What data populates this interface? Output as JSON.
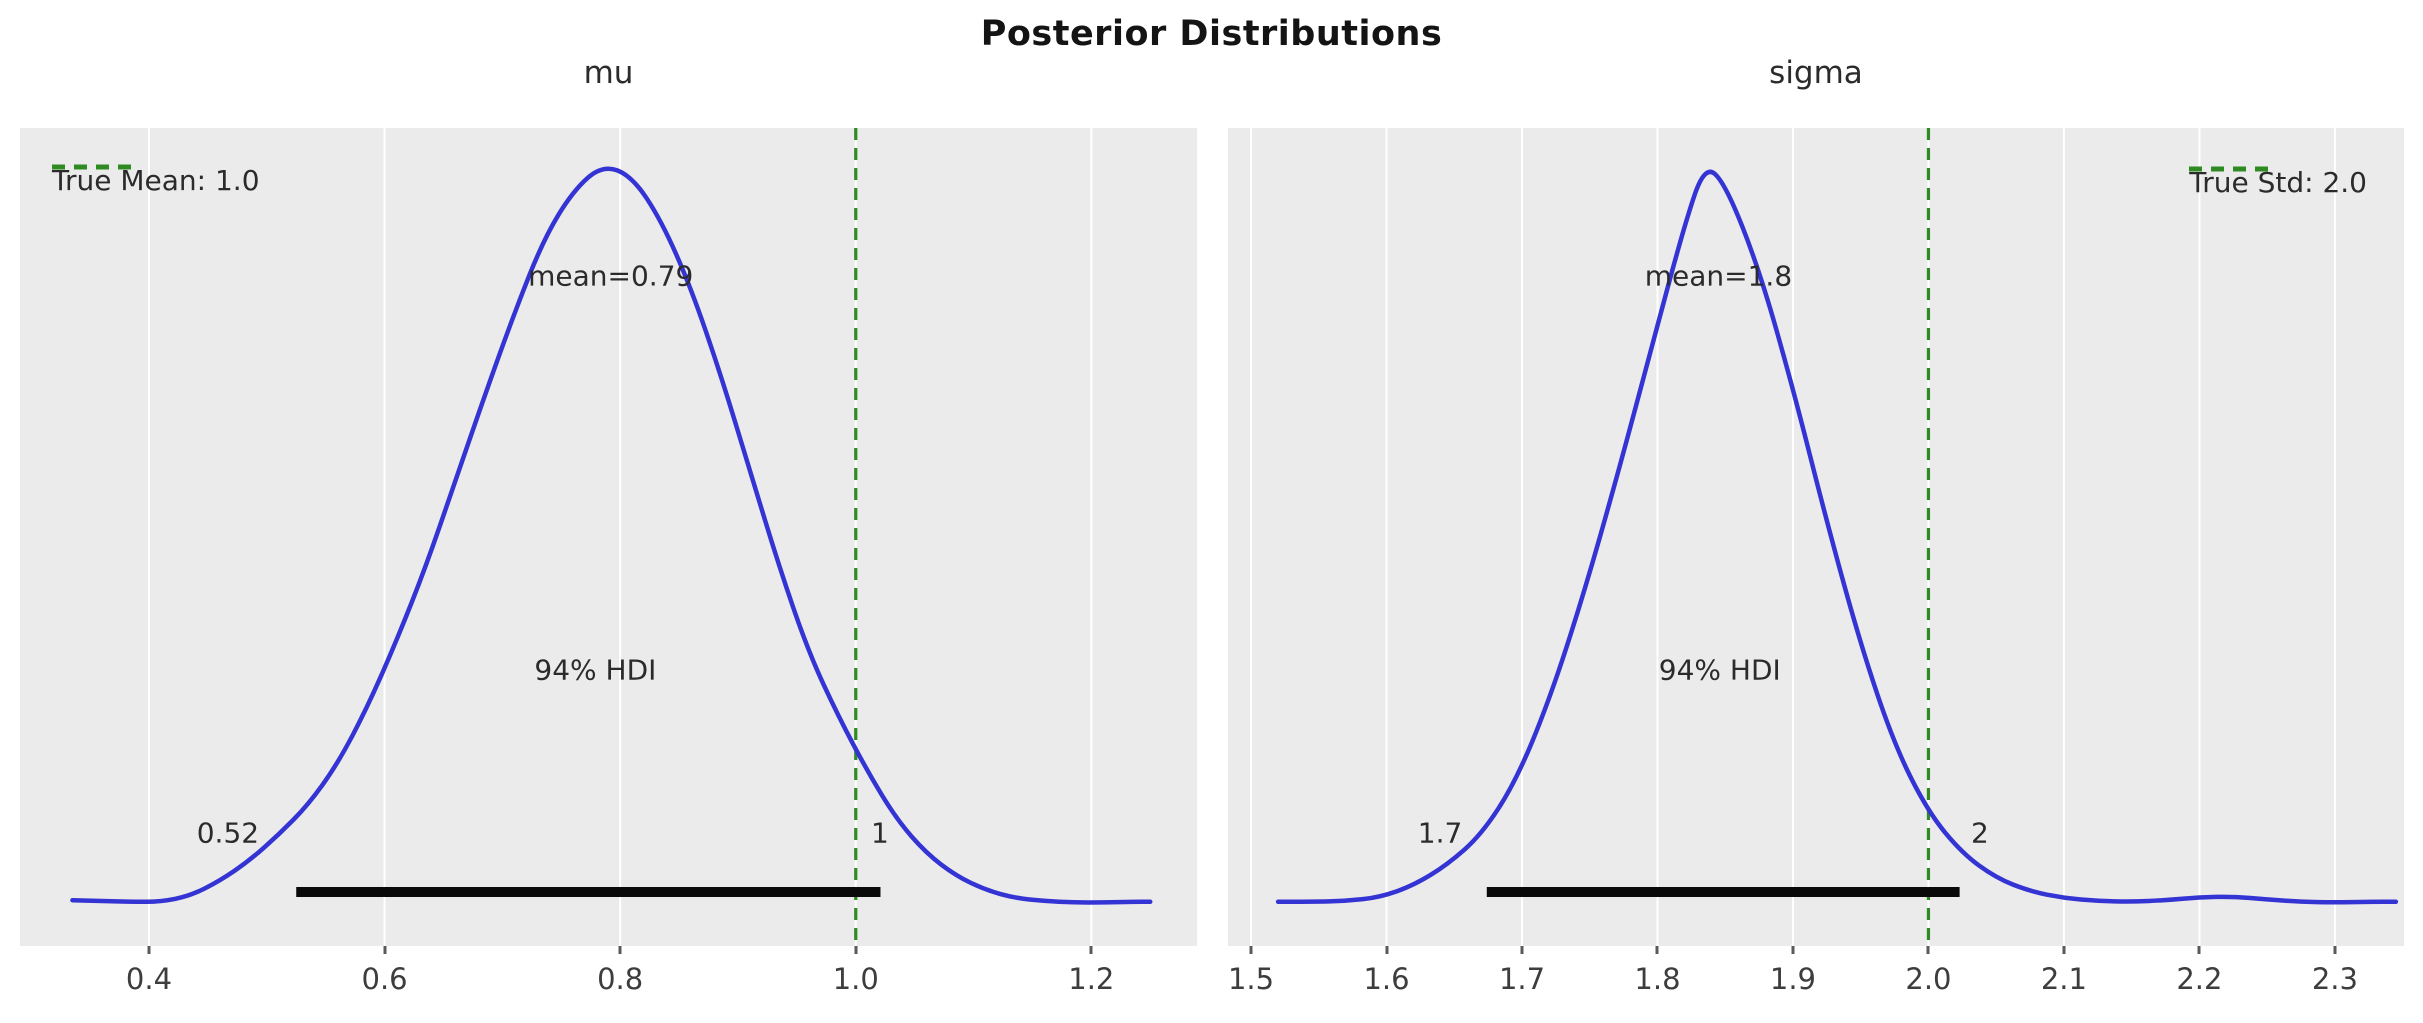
{
  "title": "Posterior Distributions",
  "colors": {
    "figure_background": "#ffffff",
    "axes_background": "#ebebeb",
    "grid": "#ffffff",
    "kde_curve": "#3434d4",
    "true_value_line": "#2e8b22",
    "hdi_bar": "#0a0a0a",
    "text": "#2b2b2b",
    "tick_text": "#3d3d3d"
  },
  "chart_data": {
    "type": "kde",
    "title": "Posterior Distributions",
    "grid": true,
    "layout": {
      "baseline_frac": 0.955,
      "peak_frac": 0.045,
      "hdi_bar_frac": 0.934,
      "mean_text_frac": 0.181,
      "hdi_text_frac": 0.663,
      "hdi_endpoint_text_frac": 0.862
    },
    "panels": [
      {
        "id": "mu",
        "title": "mu",
        "legend": {
          "label": "True Mean: 1.0",
          "position": "upper left"
        },
        "true_value": 1.0,
        "mean": 0.79,
        "mean_label": "mean=0.79",
        "hdi_label": "94% HDI",
        "hdi_low": 0.52,
        "hdi_high": 1.0,
        "hdi_low_label": "0.52",
        "hdi_high_label": "1",
        "hdi_bar": {
          "x0": 0.525,
          "x1": 1.021
        },
        "xlim": [
          0.2905,
          1.2897
        ],
        "x_ticks": [
          0.4,
          0.6,
          0.8,
          1.0,
          1.2
        ],
        "x_tick_labels": [
          "0.4",
          "0.6",
          "0.8",
          "1.0",
          "1.2"
        ],
        "label_x_hints": {
          "mean": 0.792,
          "hdi": 0.779,
          "hdi_low": 0.467,
          "hdi_high": 1.0205
        },
        "curve": {
          "x": [
            0.335,
            0.36,
            0.385,
            0.41,
            0.435,
            0.46,
            0.485,
            0.51,
            0.535,
            0.56,
            0.585,
            0.61,
            0.635,
            0.66,
            0.685,
            0.71,
            0.735,
            0.76,
            0.785,
            0.81,
            0.835,
            0.86,
            0.885,
            0.91,
            0.935,
            0.96,
            0.985,
            1.01,
            1.035,
            1.06,
            1.085,
            1.11,
            1.135,
            1.16,
            1.185,
            1.21,
            1.235,
            1.25
          ],
          "density": [
            0.012,
            0.011,
            0.01,
            0.01,
            0.018,
            0.038,
            0.065,
            0.1,
            0.14,
            0.195,
            0.27,
            0.36,
            0.46,
            0.575,
            0.69,
            0.8,
            0.9,
            0.965,
            1.0,
            0.985,
            0.925,
            0.835,
            0.72,
            0.59,
            0.46,
            0.345,
            0.26,
            0.185,
            0.12,
            0.075,
            0.045,
            0.026,
            0.015,
            0.011,
            0.009,
            0.009,
            0.01,
            0.01
          ]
        }
      },
      {
        "id": "sigma",
        "title": "sigma",
        "legend": {
          "label": "True Std: 2.0",
          "position": "upper right"
        },
        "true_value": 2.0,
        "mean": 1.8,
        "mean_label": "mean=1.8",
        "hdi_label": "94% HDI",
        "hdi_low": 1.7,
        "hdi_high": 2.0,
        "hdi_low_label": "1.7",
        "hdi_high_label": "2",
        "hdi_bar": {
          "x0": 1.674,
          "x1": 2.023
        },
        "xlim": [
          1.483,
          2.351
        ],
        "x_ticks": [
          1.5,
          1.6,
          1.7,
          1.8,
          1.9,
          2.0,
          2.1,
          2.2,
          2.3
        ],
        "x_tick_labels": [
          "1.5",
          "1.6",
          "1.7",
          "1.8",
          "1.9",
          "2.0",
          "2.1",
          "2.2",
          "2.3"
        ],
        "label_x_hints": {
          "mean": 1.845,
          "hdi": 1.846,
          "hdi_low": 1.6395,
          "hdi_high": 2.038
        },
        "curve": {
          "x": [
            1.52,
            1.545,
            1.57,
            1.595,
            1.62,
            1.645,
            1.67,
            1.695,
            1.72,
            1.745,
            1.77,
            1.795,
            1.82,
            1.835,
            1.85,
            1.875,
            1.9,
            1.925,
            1.95,
            1.975,
            2.0,
            2.025,
            2.05,
            2.075,
            2.1,
            2.125,
            2.15,
            2.175,
            2.2,
            2.225,
            2.25,
            2.275,
            2.3,
            2.325,
            2.345
          ],
          "density": [
            0.01,
            0.01,
            0.011,
            0.016,
            0.032,
            0.06,
            0.1,
            0.17,
            0.28,
            0.42,
            0.58,
            0.75,
            0.92,
            1.0,
            0.975,
            0.86,
            0.7,
            0.52,
            0.355,
            0.22,
            0.13,
            0.075,
            0.042,
            0.024,
            0.015,
            0.011,
            0.01,
            0.012,
            0.016,
            0.017,
            0.013,
            0.01,
            0.009,
            0.01,
            0.01
          ]
        }
      }
    ]
  }
}
